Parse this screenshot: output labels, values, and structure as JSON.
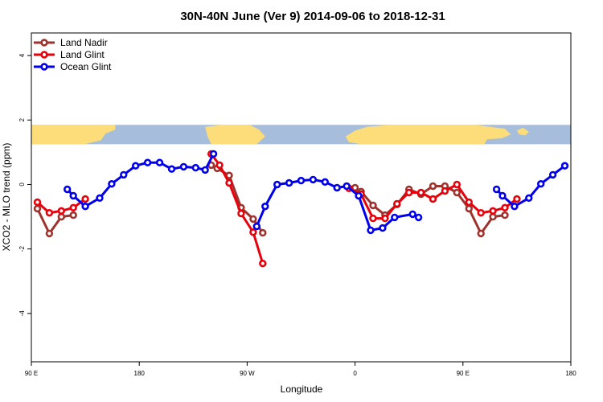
{
  "chart_data": {
    "type": "line",
    "title": "30N-40N June (Ver 9)   2014-09-06 to 2018-12-31",
    "xlabel": "Longitude",
    "ylabel": "XCO2 - MLO trend (ppm)",
    "x_range": [
      0,
      450
    ],
    "ylim": [
      -5.5,
      4.7
    ],
    "x_ticks": [
      {
        "value": 0,
        "label": "90 E"
      },
      {
        "value": 90,
        "label": "180"
      },
      {
        "value": 180,
        "label": "90 W"
      },
      {
        "value": 270,
        "label": "0"
      },
      {
        "value": 360,
        "label": "90 E"
      },
      {
        "value": 450,
        "label": "180"
      }
    ],
    "y_ticks": [
      -4,
      -2,
      0,
      2,
      4
    ],
    "legend_position": "top-left",
    "map_band": {
      "y_bottom": 1.25,
      "y_top": 1.85,
      "ocean_color": "#a6bddb",
      "land_color": "#fddc7a"
    },
    "series": [
      {
        "name": "Land Nadir",
        "color": "#a0322d",
        "segments": [
          [
            [
              5,
              -0.75
            ],
            [
              15,
              -1.52
            ],
            [
              25,
              -1.0
            ],
            [
              35,
              -0.95
            ]
          ],
          [
            [
              150,
              0.6
            ],
            [
              155,
              0.5
            ],
            [
              165,
              0.28
            ],
            [
              175,
              -0.72
            ],
            [
              185,
              -1.07
            ],
            [
              193,
              -1.5
            ]
          ],
          [
            [
              270,
              -0.1
            ],
            [
              275,
              -0.22
            ],
            [
              285,
              -0.65
            ],
            [
              295,
              -0.95
            ],
            [
              305,
              -0.62
            ],
            [
              315,
              -0.15
            ],
            [
              325,
              -0.3
            ],
            [
              335,
              -0.05
            ],
            [
              345,
              -0.05
            ],
            [
              355,
              -0.25
            ],
            [
              365,
              -0.75
            ],
            [
              375,
              -1.52
            ],
            [
              385,
              -1.0
            ],
            [
              395,
              -0.95
            ]
          ]
        ]
      },
      {
        "name": "Land Glint",
        "color": "#e8000b",
        "segments": [
          [
            [
              5,
              -0.55
            ],
            [
              15,
              -0.88
            ],
            [
              25,
              -0.82
            ],
            [
              35,
              -0.72
            ],
            [
              45,
              -0.45
            ]
          ],
          [
            [
              150,
              0.95
            ],
            [
              157,
              0.6
            ],
            [
              165,
              0.05
            ],
            [
              175,
              -0.9
            ],
            [
              185,
              -1.48
            ],
            [
              193,
              -2.45
            ]
          ],
          [
            [
              265,
              -0.12
            ],
            [
              275,
              -0.3
            ],
            [
              285,
              -1.05
            ],
            [
              295,
              -1.05
            ],
            [
              305,
              -0.6
            ],
            [
              315,
              -0.25
            ],
            [
              325,
              -0.25
            ],
            [
              335,
              -0.45
            ],
            [
              345,
              -0.2
            ],
            [
              355,
              0.0
            ],
            [
              365,
              -0.55
            ],
            [
              375,
              -0.88
            ],
            [
              385,
              -0.82
            ],
            [
              395,
              -0.72
            ],
            [
              405,
              -0.45
            ]
          ]
        ]
      },
      {
        "name": "Ocean Glint",
        "color": "#0000ee",
        "segments": [
          [
            [
              30,
              -0.15
            ],
            [
              35,
              -0.35
            ],
            [
              45,
              -0.68
            ],
            [
              57,
              -0.42
            ],
            [
              67,
              0.02
            ],
            [
              77,
              0.3
            ],
            [
              87,
              0.58
            ],
            [
              97,
              0.68
            ],
            [
              107,
              0.68
            ],
            [
              117,
              0.48
            ],
            [
              127,
              0.55
            ],
            [
              137,
              0.52
            ],
            [
              145,
              0.45
            ],
            [
              152,
              0.95
            ]
          ],
          [
            [
              188,
              -1.3
            ],
            [
              195,
              -0.68
            ],
            [
              205,
              0.0
            ],
            [
              215,
              0.05
            ],
            [
              225,
              0.12
            ],
            [
              235,
              0.15
            ],
            [
              245,
              0.08
            ],
            [
              255,
              -0.1
            ],
            [
              263,
              -0.05
            ],
            [
              273,
              -0.35
            ],
            [
              283,
              -1.42
            ],
            [
              293,
              -1.35
            ],
            [
              303,
              -1.02
            ],
            [
              318,
              -0.92
            ],
            [
              323,
              -1.02
            ]
          ],
          [
            [
              388,
              -0.15
            ],
            [
              393,
              -0.35
            ],
            [
              403,
              -0.68
            ],
            [
              415,
              -0.42
            ],
            [
              425,
              0.02
            ],
            [
              435,
              0.3
            ],
            [
              445,
              0.58
            ]
          ]
        ]
      }
    ]
  }
}
